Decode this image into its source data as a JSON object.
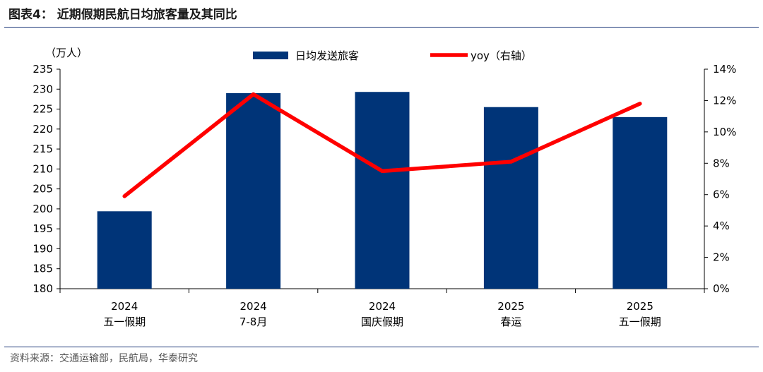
{
  "figure": {
    "title": "图表4：  近期假期民航日均旅客量及其同比",
    "source": "资料来源：交通运输部，民航局，华泰研究"
  },
  "chart_data": {
    "type": "bar",
    "categories": [
      [
        "2024",
        "五一假期"
      ],
      [
        "2024",
        "7-8月"
      ],
      [
        "2024",
        "国庆假期"
      ],
      [
        "2025",
        "春运"
      ],
      [
        "2025",
        "五一假期"
      ]
    ],
    "series": [
      {
        "name": "日均发送旅客",
        "type": "bar",
        "axis": "left",
        "color": "#003478",
        "values": [
          199.4,
          229.0,
          229.3,
          225.5,
          223.0
        ]
      },
      {
        "name": "yoy（右轴）",
        "type": "line",
        "axis": "right",
        "color": "#ff0000",
        "values": [
          0.059,
          0.124,
          0.075,
          0.081,
          0.118
        ]
      }
    ],
    "left_axis": {
      "unit_label": "（万人）",
      "ylim": [
        180,
        235
      ],
      "ticks": [
        "180",
        "185",
        "190",
        "195",
        "200",
        "205",
        "210",
        "215",
        "220",
        "225",
        "230",
        "235"
      ]
    },
    "right_axis": {
      "ylim": [
        0,
        0.14
      ],
      "ticks": [
        "0%",
        "2%",
        "4%",
        "6%",
        "8%",
        "10%",
        "12%",
        "14%"
      ]
    },
    "legend": {
      "placement": "top-center"
    },
    "grid": false
  }
}
